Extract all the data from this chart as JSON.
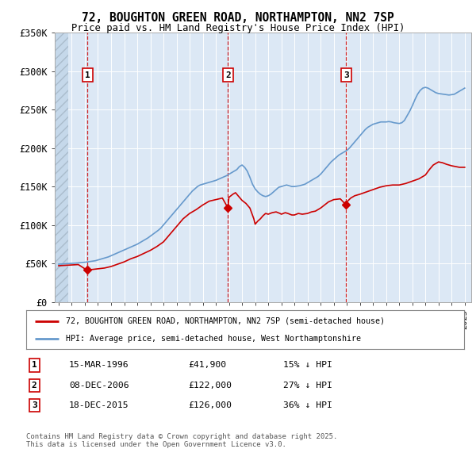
{
  "title": "72, BOUGHTON GREEN ROAD, NORTHAMPTON, NN2 7SP",
  "subtitle": "Price paid vs. HM Land Registry's House Price Index (HPI)",
  "bg_color": "#ffffff",
  "plot_bg_color": "#dce8f5",
  "red_line_color": "#cc0000",
  "blue_line_color": "#6699cc",
  "ylim": [
    0,
    350000
  ],
  "yticks": [
    0,
    50000,
    100000,
    150000,
    200000,
    250000,
    300000,
    350000
  ],
  "ytick_labels": [
    "£0",
    "£50K",
    "£100K",
    "£150K",
    "£200K",
    "£250K",
    "£300K",
    "£350K"
  ],
  "xlim_start": 1993.7,
  "xlim_end": 2025.5,
  "hatch_end": 1994.7,
  "purchases": [
    {
      "year": 1996.2,
      "price": 41900,
      "label": "1",
      "date": "15-MAR-1996",
      "pct": "15%"
    },
    {
      "year": 2006.93,
      "price": 122000,
      "label": "2",
      "date": "08-DEC-2006",
      "pct": "27%"
    },
    {
      "year": 2015.95,
      "price": 126000,
      "label": "3",
      "date": "18-DEC-2015",
      "pct": "36%"
    }
  ],
  "legend_entry1": "72, BOUGHTON GREEN ROAD, NORTHAMPTON, NN2 7SP (semi-detached house)",
  "legend_entry2": "HPI: Average price, semi-detached house, West Northamptonshire",
  "footnote": "Contains HM Land Registry data © Crown copyright and database right 2025.\nThis data is licensed under the Open Government Licence v3.0.",
  "hpi_x": [
    1994.0,
    1994.2,
    1994.4,
    1994.6,
    1994.8,
    1995.0,
    1995.2,
    1995.4,
    1995.6,
    1995.8,
    1996.0,
    1996.2,
    1996.4,
    1996.6,
    1996.8,
    1997.0,
    1997.2,
    1997.4,
    1997.6,
    1997.8,
    1998.0,
    1998.2,
    1998.4,
    1998.6,
    1998.8,
    1999.0,
    1999.2,
    1999.4,
    1999.6,
    1999.8,
    2000.0,
    2000.2,
    2000.4,
    2000.6,
    2000.8,
    2001.0,
    2001.2,
    2001.4,
    2001.6,
    2001.8,
    2002.0,
    2002.2,
    2002.4,
    2002.6,
    2002.8,
    2003.0,
    2003.2,
    2003.4,
    2003.6,
    2003.8,
    2004.0,
    2004.2,
    2004.4,
    2004.6,
    2004.8,
    2005.0,
    2005.2,
    2005.4,
    2005.6,
    2005.8,
    2006.0,
    2006.2,
    2006.4,
    2006.6,
    2006.8,
    2007.0,
    2007.2,
    2007.4,
    2007.6,
    2007.8,
    2008.0,
    2008.2,
    2008.4,
    2008.6,
    2008.8,
    2009.0,
    2009.2,
    2009.4,
    2009.6,
    2009.8,
    2010.0,
    2010.2,
    2010.4,
    2010.6,
    2010.8,
    2011.0,
    2011.2,
    2011.4,
    2011.6,
    2011.8,
    2012.0,
    2012.2,
    2012.4,
    2012.6,
    2012.8,
    2013.0,
    2013.2,
    2013.4,
    2013.6,
    2013.8,
    2014.0,
    2014.2,
    2014.4,
    2014.6,
    2014.8,
    2015.0,
    2015.2,
    2015.4,
    2015.6,
    2015.8,
    2016.0,
    2016.2,
    2016.4,
    2016.6,
    2016.8,
    2017.0,
    2017.2,
    2017.4,
    2017.6,
    2017.8,
    2018.0,
    2018.2,
    2018.4,
    2018.6,
    2018.8,
    2019.0,
    2019.2,
    2019.4,
    2019.6,
    2019.8,
    2020.0,
    2020.2,
    2020.4,
    2020.6,
    2020.8,
    2021.0,
    2021.2,
    2021.4,
    2021.6,
    2021.8,
    2022.0,
    2022.2,
    2022.4,
    2022.6,
    2022.8,
    2023.0,
    2023.2,
    2023.4,
    2023.6,
    2023.8,
    2024.0,
    2024.2,
    2024.4,
    2024.6,
    2024.8,
    2025.0
  ],
  "hpi_y": [
    49000,
    49200,
    49400,
    49600,
    49800,
    50000,
    50200,
    50500,
    50800,
    51000,
    51500,
    52000,
    52500,
    53000,
    53500,
    54500,
    55500,
    56500,
    57500,
    58500,
    60000,
    61500,
    63000,
    64500,
    66000,
    67500,
    69000,
    70500,
    72000,
    73500,
    75000,
    77000,
    79000,
    81000,
    83000,
    85500,
    88000,
    90500,
    93000,
    96000,
    100000,
    104000,
    108000,
    112000,
    116000,
    120000,
    124000,
    128000,
    132000,
    136000,
    140000,
    144000,
    147000,
    150000,
    152000,
    153000,
    154000,
    155000,
    156000,
    157000,
    158000,
    159500,
    161000,
    162500,
    164000,
    166000,
    168000,
    170000,
    172000,
    176000,
    178000,
    175000,
    170000,
    162000,
    153000,
    147000,
    143000,
    140000,
    138000,
    137000,
    138000,
    140000,
    143000,
    146000,
    149000,
    150000,
    151000,
    152000,
    151000,
    150000,
    150000,
    150500,
    151000,
    152000,
    153000,
    155000,
    157000,
    159000,
    161000,
    163000,
    166000,
    170000,
    174000,
    178000,
    182000,
    185000,
    188000,
    191000,
    193000,
    195000,
    197000,
    200000,
    204000,
    208000,
    212000,
    216000,
    220000,
    224000,
    227000,
    229000,
    231000,
    232000,
    233000,
    234000,
    234000,
    234000,
    234500,
    234000,
    233000,
    232500,
    232000,
    233000,
    236000,
    242000,
    248000,
    255000,
    263000,
    270000,
    275000,
    278000,
    279000,
    278000,
    276000,
    274000,
    272000,
    271000,
    270500,
    270000,
    269500,
    269000,
    269500,
    270000,
    272000,
    274000,
    276000,
    278000
  ],
  "red_x": [
    1994.0,
    1994.5,
    1995.0,
    1995.5,
    1996.0,
    1996.2,
    1996.5,
    1997.0,
    1997.5,
    1998.0,
    1998.5,
    1999.0,
    1999.5,
    2000.0,
    2000.5,
    2001.0,
    2001.5,
    2002.0,
    2002.5,
    2003.0,
    2003.5,
    2004.0,
    2004.5,
    2005.0,
    2005.5,
    2006.0,
    2006.5,
    2006.93,
    2007.0,
    2007.3,
    2007.5,
    2007.8,
    2008.0,
    2008.3,
    2008.6,
    2008.9,
    2009.0,
    2009.2,
    2009.4,
    2009.6,
    2009.8,
    2010.0,
    2010.3,
    2010.6,
    2010.9,
    2011.0,
    2011.3,
    2011.5,
    2011.8,
    2012.0,
    2012.3,
    2012.6,
    2013.0,
    2013.3,
    2013.6,
    2014.0,
    2014.3,
    2014.6,
    2015.0,
    2015.5,
    2015.95,
    2016.0,
    2016.3,
    2016.6,
    2017.0,
    2017.5,
    2018.0,
    2018.5,
    2019.0,
    2019.5,
    2020.0,
    2020.5,
    2021.0,
    2021.5,
    2022.0,
    2022.3,
    2022.6,
    2023.0,
    2023.3,
    2023.6,
    2024.0,
    2024.3,
    2024.6,
    2025.0
  ],
  "red_y": [
    47000,
    47500,
    48000,
    48500,
    43000,
    41900,
    42000,
    43000,
    44000,
    46000,
    49000,
    52000,
    56000,
    59000,
    63000,
    67000,
    72000,
    78000,
    88000,
    98000,
    108000,
    115000,
    120000,
    126000,
    131000,
    133000,
    135000,
    122000,
    136000,
    140000,
    142000,
    136000,
    132000,
    128000,
    122000,
    108000,
    101000,
    105000,
    108000,
    112000,
    115000,
    114000,
    116000,
    117000,
    115000,
    114000,
    116000,
    115000,
    113000,
    113000,
    115000,
    114000,
    115000,
    117000,
    118000,
    122000,
    126000,
    130000,
    133000,
    134000,
    126000,
    130000,
    135000,
    138000,
    140000,
    143000,
    146000,
    149000,
    151000,
    152000,
    152000,
    154000,
    157000,
    160000,
    165000,
    172000,
    178000,
    182000,
    181000,
    179000,
    177000,
    176000,
    175000,
    175000
  ]
}
